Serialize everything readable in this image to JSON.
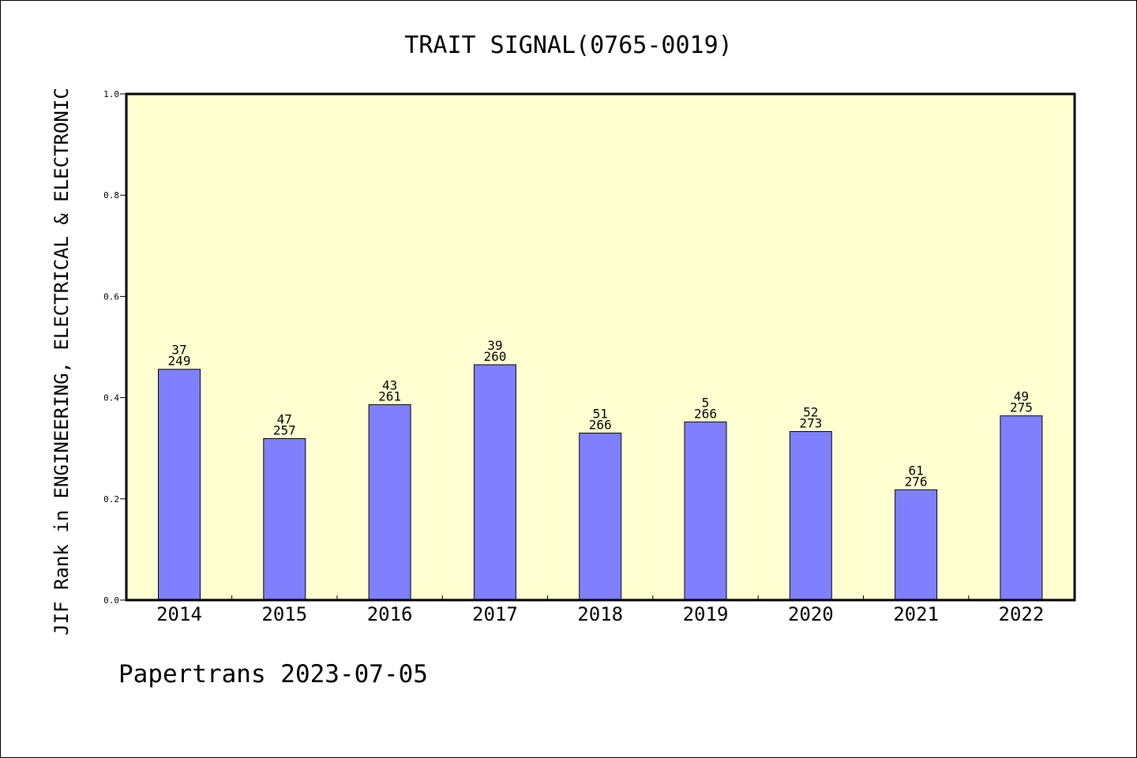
{
  "chart_data": {
    "type": "bar",
    "title": "TRAIT SIGNAL(0765-0019)",
    "ylabel": "JIF Rank in ENGINEERING, ELECTRICAL & ELECTRONIC",
    "xlabel": "",
    "ylim": [
      0,
      1.0
    ],
    "yticks": [
      "0.0",
      "0.2",
      "0.4",
      "0.6",
      "0.8",
      "1.0"
    ],
    "categories": [
      "2014",
      "2015",
      "2016",
      "2017",
      "2018",
      "2019",
      "2020",
      "2021",
      "2022"
    ],
    "values": [
      0.456,
      0.319,
      0.386,
      0.465,
      0.33,
      0.352,
      0.333,
      0.218,
      0.364
    ],
    "rank_labels": [
      "37",
      "47",
      "43",
      "39",
      "51",
      "5",
      "52",
      "61",
      "49"
    ],
    "total_labels": [
      "249",
      "257",
      "261",
      "260",
      "266",
      "266",
      "273",
      "276",
      "275"
    ],
    "grid": false,
    "legend": "none"
  },
  "footer": "Papertrans 2023-07-05",
  "colors": {
    "plot_background": "#ffffd2",
    "bar_fill": "#8080ff",
    "axis": "#000000"
  }
}
